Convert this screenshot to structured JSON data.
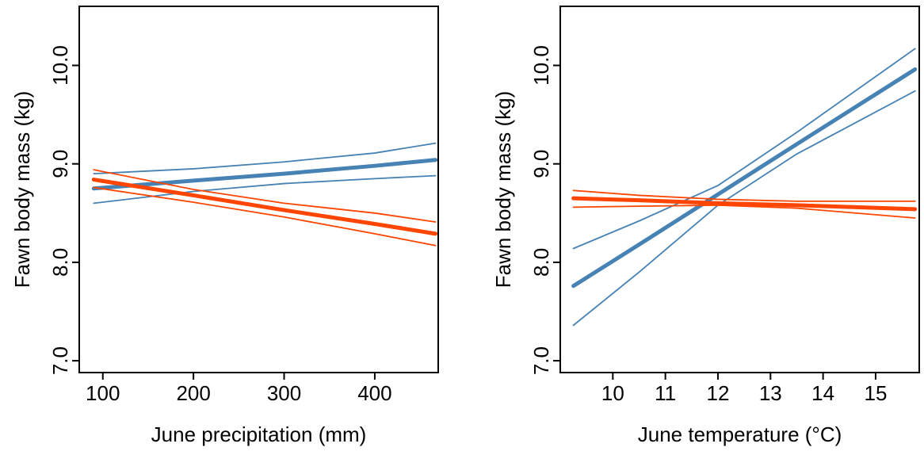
{
  "chart_data": [
    {
      "type": "line",
      "xlabel": "June precipitation (mm)",
      "ylabel": "Fawn body mass (kg)",
      "x": [
        90,
        200,
        300,
        400,
        467
      ],
      "series": [
        {
          "color": "#4682b4",
          "line_width": 5,
          "values": [
            8.75,
            8.83,
            8.9,
            8.98,
            9.04
          ]
        },
        {
          "color": "#4682b4",
          "line_width": 1.8,
          "values": [
            8.9,
            8.95,
            9.02,
            9.11,
            9.21
          ]
        },
        {
          "color": "#4682b4",
          "line_width": 1.8,
          "values": [
            8.6,
            8.72,
            8.8,
            8.85,
            8.88
          ]
        },
        {
          "color": "#ff4500",
          "line_width": 5,
          "values": [
            8.84,
            8.68,
            8.53,
            8.39,
            8.29
          ]
        },
        {
          "color": "#ff4500",
          "line_width": 1.8,
          "values": [
            8.94,
            8.74,
            8.6,
            8.5,
            8.41
          ]
        },
        {
          "color": "#ff4500",
          "line_width": 1.8,
          "values": [
            8.76,
            8.61,
            8.46,
            8.29,
            8.17
          ]
        }
      ],
      "xlim": [
        74,
        470
      ],
      "ylim": [
        6.88,
        10.6
      ],
      "xticks": [
        100,
        200,
        300,
        400
      ],
      "yticks": [
        {
          "value": 7,
          "label": "7.0"
        },
        {
          "value": 8,
          "label": "8.0"
        },
        {
          "value": 9,
          "label": "9.0"
        },
        {
          "value": 10,
          "label": "10.0"
        }
      ]
    },
    {
      "type": "line",
      "xlabel": "June temperature (°C)",
      "ylabel": "Fawn body mass (kg)",
      "x": [
        9.25,
        10.5,
        12,
        13.5,
        15.75
      ],
      "series": [
        {
          "color": "#4682b4",
          "line_width": 5,
          "values": [
            7.76,
            8.18,
            8.69,
            9.2,
            9.96
          ]
        },
        {
          "color": "#4682b4",
          "line_width": 1.8,
          "values": [
            8.14,
            8.42,
            8.78,
            9.32,
            10.17
          ]
        },
        {
          "color": "#4682b4",
          "line_width": 1.8,
          "values": [
            7.36,
            7.9,
            8.58,
            9.1,
            9.74
          ]
        },
        {
          "color": "#ff4500",
          "line_width": 5,
          "values": [
            8.65,
            8.63,
            8.6,
            8.58,
            8.54
          ]
        },
        {
          "color": "#ff4500",
          "line_width": 1.8,
          "values": [
            8.73,
            8.68,
            8.64,
            8.62,
            8.62
          ]
        },
        {
          "color": "#ff4500",
          "line_width": 1.8,
          "values": [
            8.56,
            8.57,
            8.58,
            8.55,
            8.45
          ]
        }
      ],
      "xlim": [
        9.0,
        15.83
      ],
      "ylim": [
        6.88,
        10.6
      ],
      "xticks": [
        10,
        11,
        12,
        13,
        14,
        15
      ],
      "yticks": [
        {
          "value": 7,
          "label": "7.0"
        },
        {
          "value": 8,
          "label": "8.0"
        },
        {
          "value": 9,
          "label": "9.0"
        },
        {
          "value": 10,
          "label": "10.0"
        }
      ]
    }
  ]
}
